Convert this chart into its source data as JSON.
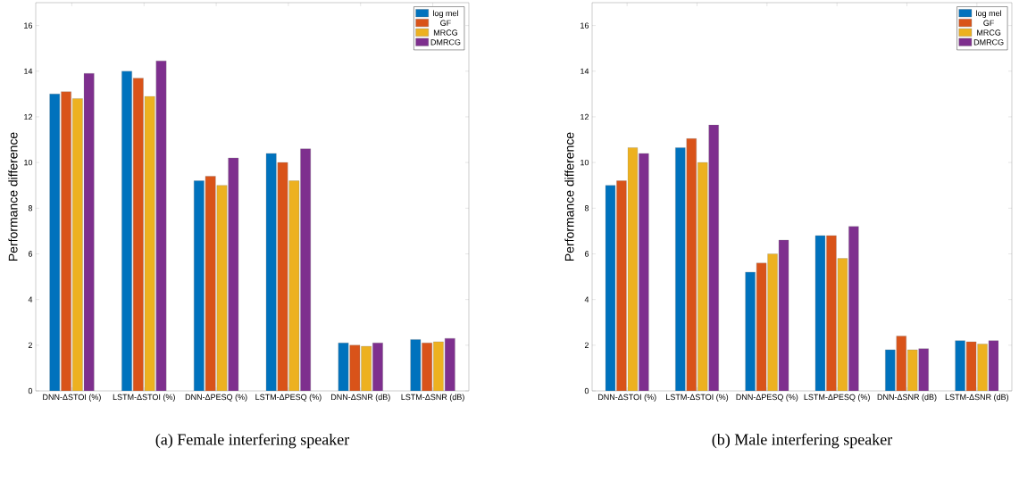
{
  "chart_data": [
    {
      "type": "bar",
      "ylabel": "Performance difference",
      "categories": [
        "DNN-ΔSTOI (%)",
        "LSTM-ΔSTOI (%)",
        "DNN-ΔPESQ (%)",
        "LSTM-ΔPESQ (%)",
        "DNN-ΔSNR (dB)",
        "LSTM-ΔSNR (dB)"
      ],
      "series": [
        {
          "name": "log mel",
          "color": "#0072bd",
          "values": [
            13.0,
            14.0,
            9.2,
            10.4,
            2.1,
            2.25
          ]
        },
        {
          "name": "GF",
          "color": "#d95319",
          "values": [
            13.1,
            13.7,
            9.4,
            10.0,
            2.0,
            2.1
          ]
        },
        {
          "name": "MRCG",
          "color": "#edb120",
          "values": [
            12.8,
            12.9,
            9.0,
            9.2,
            1.95,
            2.15
          ]
        },
        {
          "name": "DMRCG",
          "color": "#7e2f8e",
          "values": [
            13.9,
            14.45,
            10.2,
            10.6,
            2.1,
            2.3
          ]
        }
      ],
      "ylim": [
        0,
        17
      ],
      "yticks": [
        0,
        2,
        4,
        6,
        8,
        10,
        12,
        14,
        16
      ],
      "legend": "top right",
      "annotations": [
        "(a) Female interfering speaker"
      ]
    },
    {
      "type": "bar",
      "ylabel": "Performance difference",
      "categories": [
        "DNN-ΔSTOI (%)",
        "LSTM-ΔSTOI (%)",
        "DNN-ΔPESQ (%)",
        "LSTM-ΔPESQ (%)",
        "DNN-ΔSNR (dB)",
        "LSTM-ΔSNR (dB)"
      ],
      "series": [
        {
          "name": "log mel",
          "color": "#0072bd",
          "values": [
            9.0,
            10.65,
            5.2,
            6.8,
            1.8,
            2.2
          ]
        },
        {
          "name": "GF",
          "color": "#d95319",
          "values": [
            9.2,
            11.05,
            5.6,
            6.8,
            2.4,
            2.15
          ]
        },
        {
          "name": "MRCG",
          "color": "#edb120",
          "values": [
            10.65,
            10.0,
            6.0,
            5.8,
            1.8,
            2.05
          ]
        },
        {
          "name": "DMRCG",
          "color": "#7e2f8e",
          "values": [
            10.4,
            11.65,
            6.6,
            7.2,
            1.85,
            2.2
          ]
        }
      ],
      "ylim": [
        0,
        17
      ],
      "yticks": [
        0,
        2,
        4,
        6,
        8,
        10,
        12,
        14,
        16
      ],
      "legend": "top right",
      "annotations": [
        "(b) Male interfering speaker"
      ]
    }
  ]
}
